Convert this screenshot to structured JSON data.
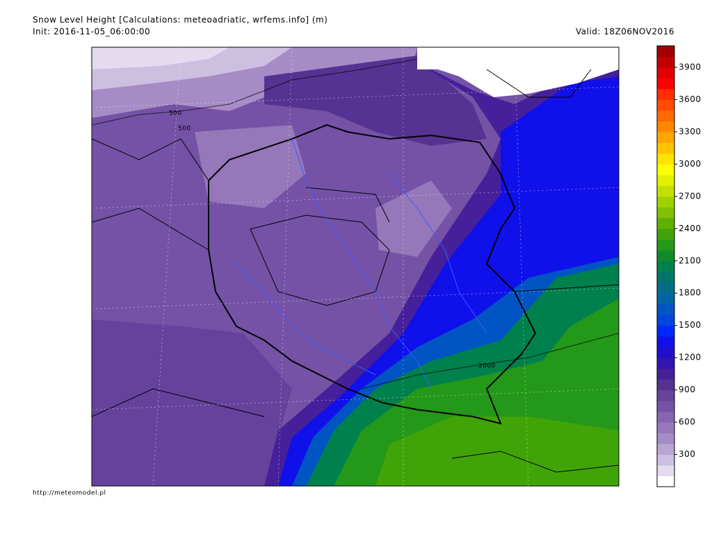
{
  "header": {
    "title": "Snow Level Height [Calculations: meteoadriatic, wrfems.info] (m)",
    "init": "Init: 2016-11-05_06:00:00",
    "valid": "Valid: 18Z06NOV2016"
  },
  "map": {
    "contour_labels": [
      "500",
      "500",
      "2000"
    ]
  },
  "colorbar": {
    "lim": [
      0,
      4100
    ],
    "ticks": [
      300,
      600,
      900,
      1200,
      1500,
      1800,
      2100,
      2400,
      2700,
      3000,
      3300,
      3600,
      3900
    ],
    "colors": [
      "#ffffff",
      "#e4dcee",
      "#cdbfe0",
      "#b9a6d2",
      "#a68cc6",
      "#9677ba",
      "#8564b0",
      "#7552a6",
      "#66429c",
      "#563292",
      "#46209a",
      "#3414b0",
      "#2010cc",
      "#1010ea",
      "#0028ff",
      "#0044e0",
      "#0054c4",
      "#0064a6",
      "#006c88",
      "#00746a",
      "#00804c",
      "#108a2c",
      "#249818",
      "#40a408",
      "#60b000",
      "#80c000",
      "#a0d000",
      "#c4e000",
      "#e4f000",
      "#ffff00",
      "#ffe200",
      "#ffc400",
      "#ffa600",
      "#ff8800",
      "#ff6a00",
      "#ff4c00",
      "#ff2e00",
      "#ff0000",
      "#e00000",
      "#c00000",
      "#a00000"
    ]
  },
  "footer": {
    "url": "http://meteomodel.pl"
  }
}
